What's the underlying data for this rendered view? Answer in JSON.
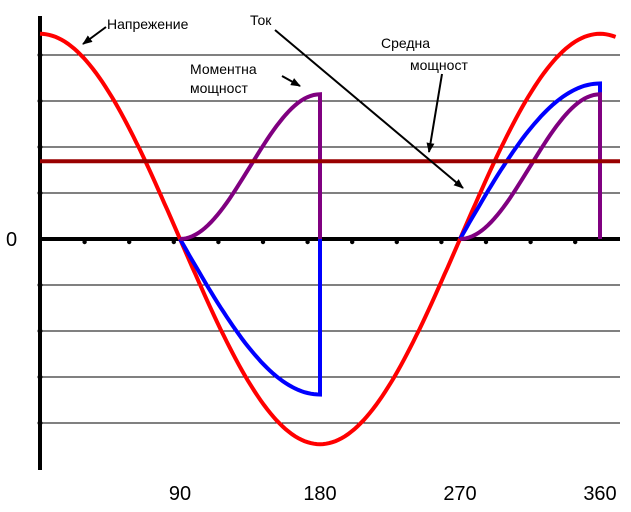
{
  "chart_data": {
    "type": "line",
    "title": "",
    "xlabel": "",
    "ylabel": "",
    "xlim": [
      0,
      360
    ],
    "ylim": [
      -1.0,
      1.0
    ],
    "grid": true,
    "x_ticks": [
      {
        "value": 90,
        "label": "90"
      },
      {
        "value": 180,
        "label": "180"
      },
      {
        "value": 270,
        "label": "270"
      },
      {
        "value": 360,
        "label": "360"
      }
    ],
    "y_zero_label": "0",
    "series": [
      {
        "name": "Напрежение",
        "color": "#ff0000",
        "x": [
          0,
          15,
          30,
          45,
          60,
          75,
          90,
          105,
          120,
          135,
          150,
          165,
          180,
          195,
          210,
          225,
          240,
          255,
          270,
          285,
          300,
          315,
          330,
          345,
          360
        ],
        "y": [
          0.95,
          0.92,
          0.82,
          0.67,
          0.48,
          0.25,
          0.0,
          -0.25,
          -0.48,
          -0.67,
          -0.82,
          -0.92,
          -0.95,
          -0.92,
          -0.82,
          -0.67,
          -0.48,
          -0.25,
          0.0,
          0.25,
          0.48,
          0.67,
          0.82,
          0.92,
          0.95
        ]
      },
      {
        "name": "Ток",
        "color": "#0000ff",
        "x": [
          90,
          105,
          120,
          135,
          150,
          165,
          180,
          180,
          270,
          285,
          300,
          315,
          330,
          345,
          360,
          360
        ],
        "y": [
          0.0,
          -0.19,
          -0.37,
          -0.52,
          -0.63,
          -0.7,
          -0.72,
          0.0,
          0.0,
          0.19,
          0.37,
          0.52,
          0.63,
          0.7,
          0.72,
          0.0
        ]
      },
      {
        "name": "Моментна мощност",
        "color": "#800080",
        "x": [
          90,
          105,
          120,
          135,
          150,
          165,
          180,
          180,
          270,
          285,
          300,
          315,
          330,
          345,
          360,
          360
        ],
        "y": [
          0.0,
          0.05,
          0.18,
          0.34,
          0.52,
          0.64,
          0.67,
          0.0,
          0.0,
          0.05,
          0.18,
          0.34,
          0.52,
          0.64,
          0.67,
          0.0
        ]
      },
      {
        "name": "Средна мощност",
        "color": "#990000",
        "x": [
          0,
          360
        ],
        "y": [
          0.36,
          0.36
        ]
      }
    ],
    "annotations": [
      {
        "text": "Напрежение"
      },
      {
        "text": "Ток"
      },
      {
        "text": "Моментна",
        "text2": "мощност"
      },
      {
        "text": "Средна",
        "text2": "мощност"
      }
    ]
  }
}
